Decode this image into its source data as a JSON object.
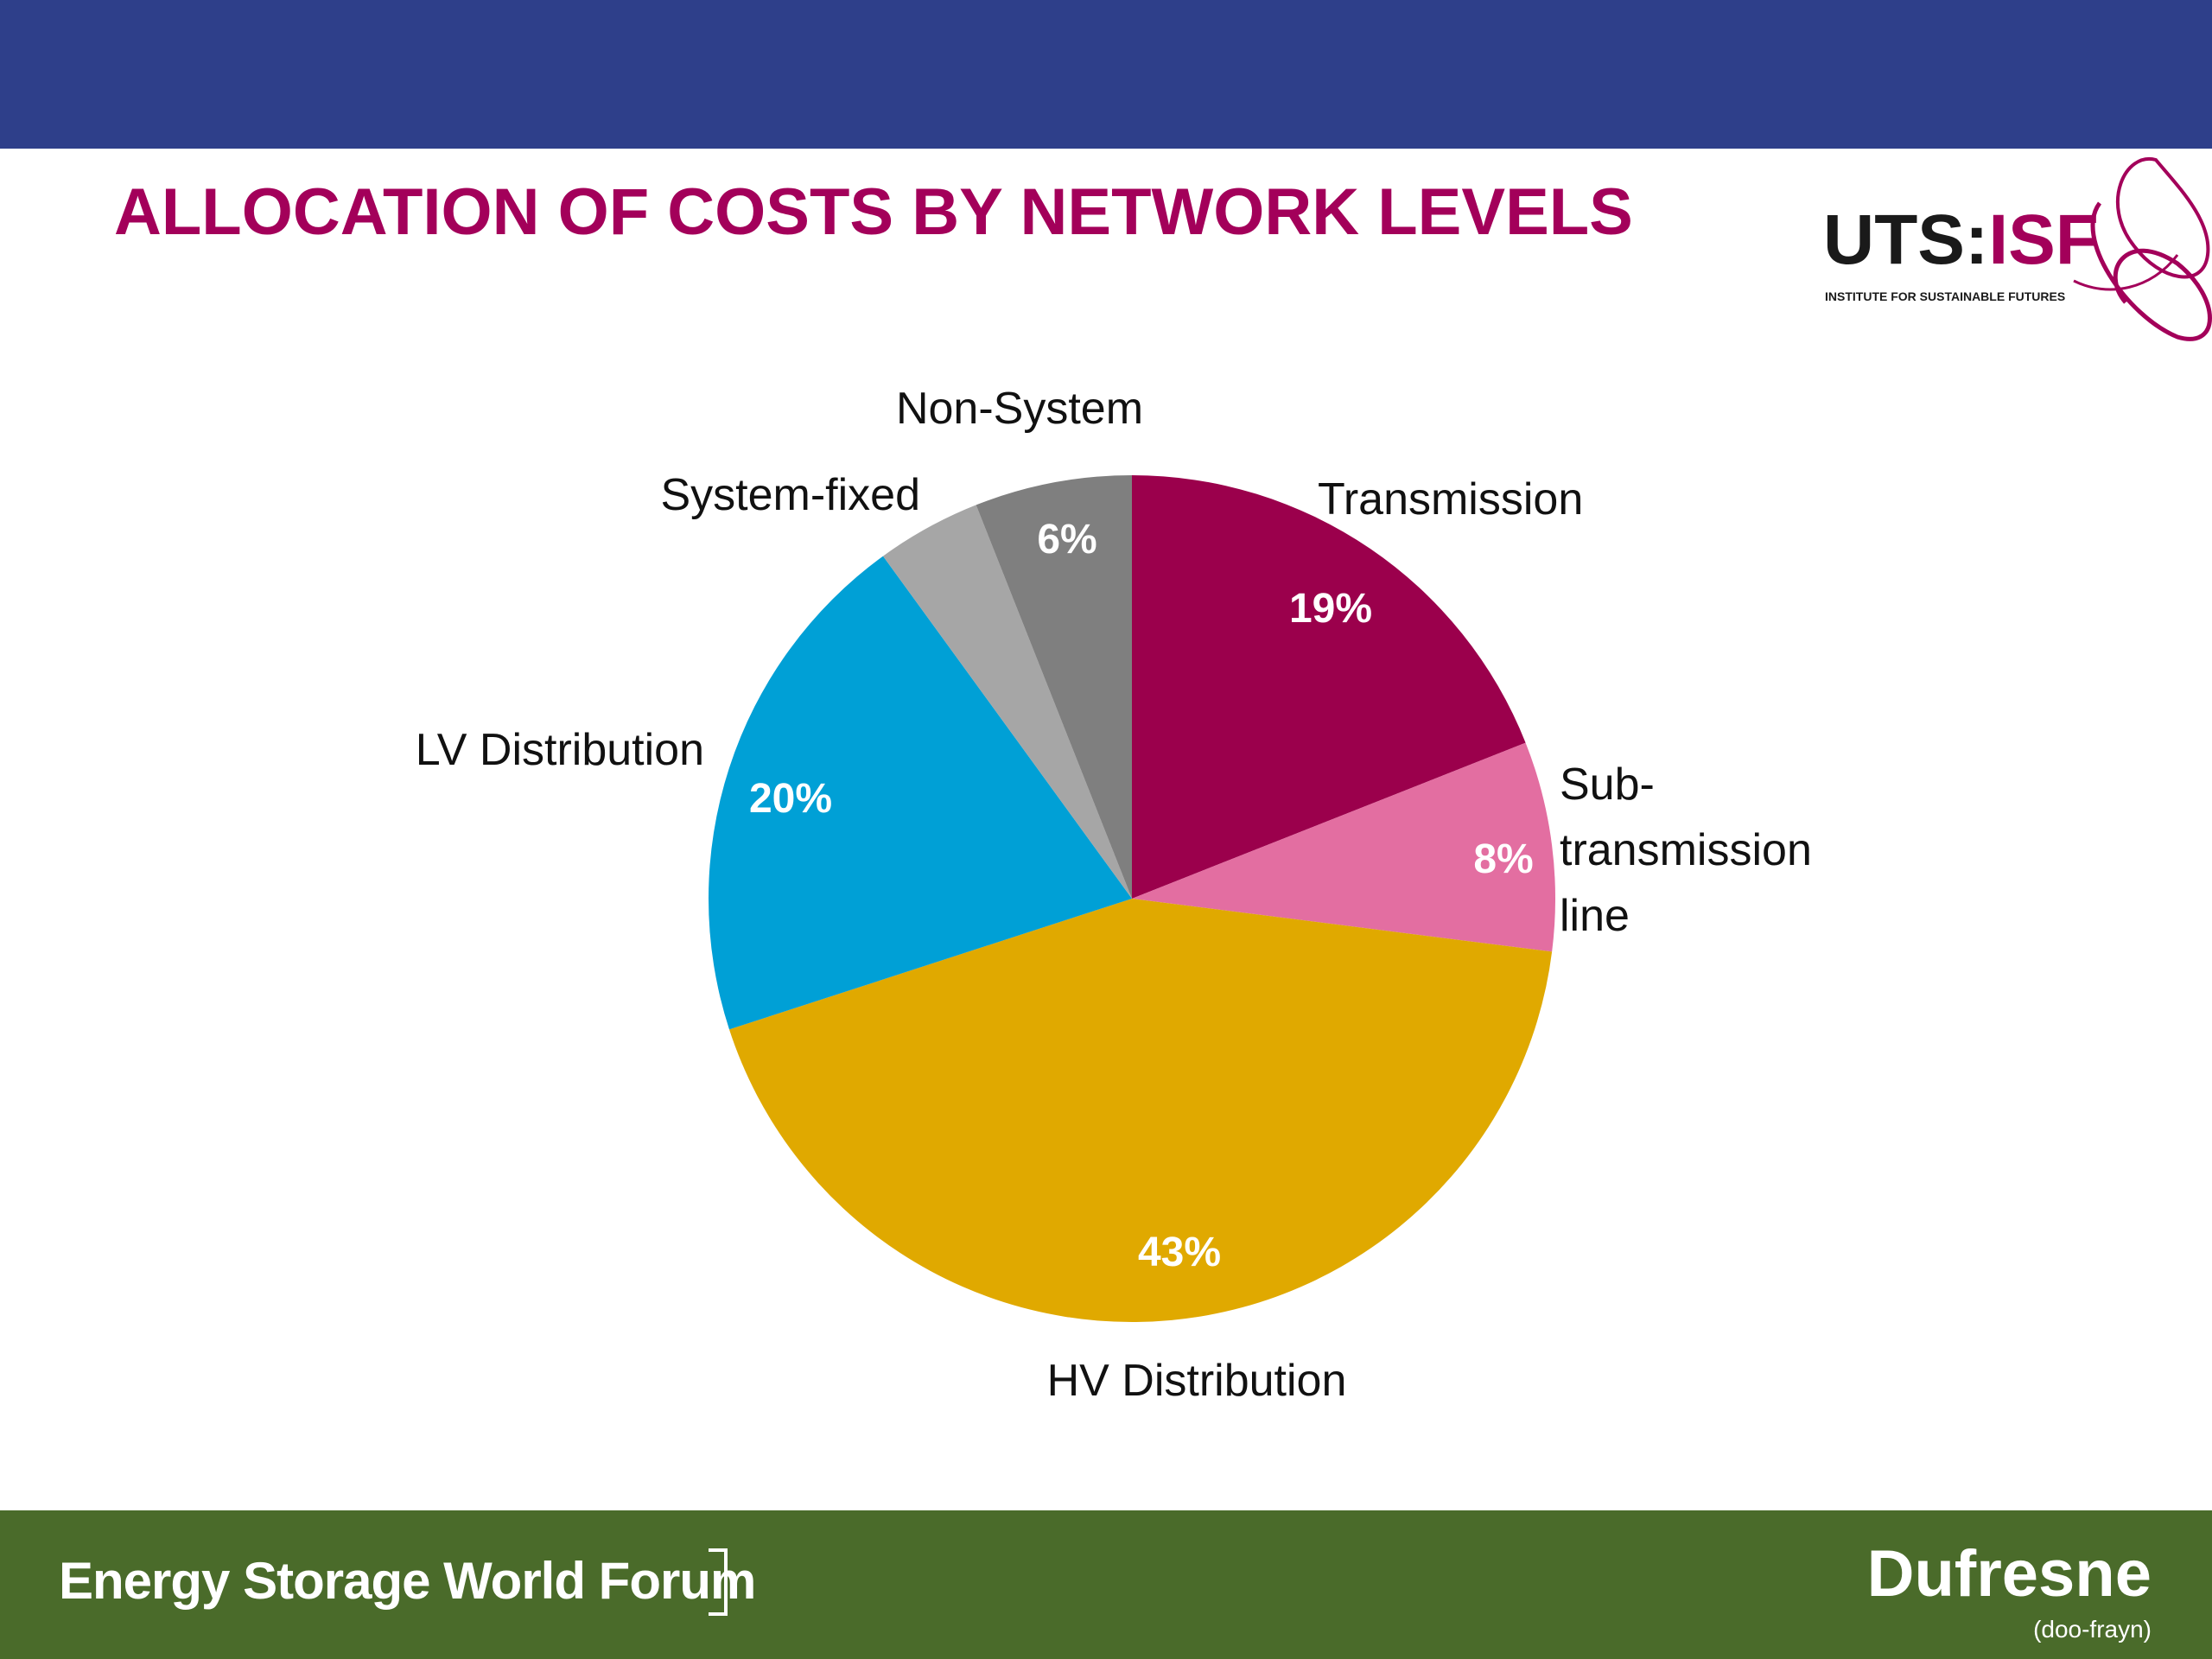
{
  "slide": {
    "title": "ALLOCATION OF COSTS BY NETWORK LEVELS",
    "logo_text_main": "UTS:",
    "logo_text_accent": "ISF",
    "logo_subtitle": "INSTITUTE FOR SUSTAINABLE FUTURES",
    "footer_left": "Energy Storage World Forum",
    "footer_right_brand": "Dufresne",
    "footer_right_pronunciation": "(doo-frayn)"
  },
  "colors": {
    "header_bar": "#2e3f8a",
    "title": "#a3005a",
    "footer_bar": "#4a6b2a"
  },
  "chart_data": {
    "type": "pie",
    "title": "",
    "slices": [
      {
        "name": "Transmission",
        "label": "19%",
        "value": 19,
        "color": "#9b004c"
      },
      {
        "name": "Sub-transmission line",
        "label": "8%",
        "value": 8,
        "color": "#e36ea1"
      },
      {
        "name": "HV Distribution",
        "label": "43%",
        "value": 43,
        "color": "#e0a900"
      },
      {
        "name": "LV Distribution",
        "label": "20%",
        "value": 20,
        "color": "#00a0d6"
      },
      {
        "name": "System-fixed",
        "label": "4%",
        "value": 4,
        "color": "#a6a6a6",
        "show_value_label": false
      },
      {
        "name": "Non-System",
        "label": "6%",
        "value": 6,
        "color": "#7f7f7f"
      }
    ],
    "start_angle": "12 o'clock",
    "direction": "clockwise",
    "legend": "none (category labels placed beside slices)"
  }
}
